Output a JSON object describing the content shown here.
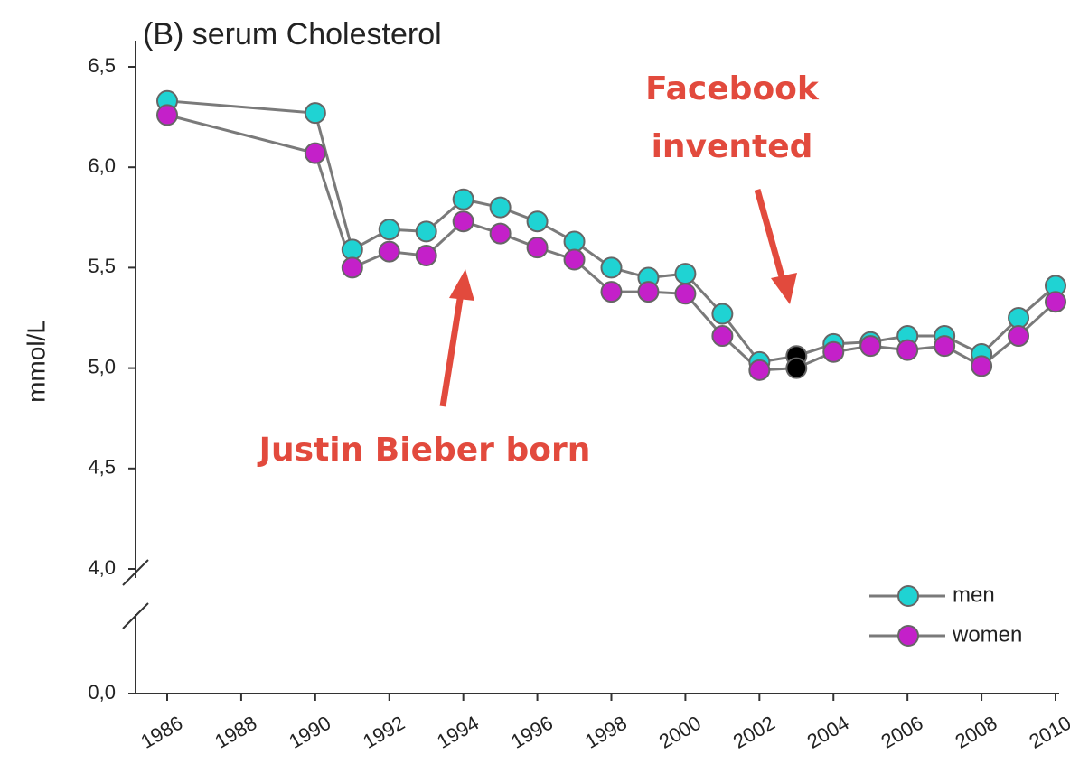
{
  "chart_data": {
    "type": "line",
    "title": "(B) serum Cholesterol",
    "y_label": "mmol/L",
    "x": [
      1986,
      1990,
      1991,
      1992,
      1993,
      1994,
      1995,
      1996,
      1997,
      1998,
      1999,
      2000,
      2001,
      2002,
      2003,
      2004,
      2005,
      2006,
      2007,
      2008,
      2009,
      2010
    ],
    "series": [
      {
        "name": "men",
        "color": "#1fd3d3",
        "values": [
          6.33,
          6.27,
          5.59,
          5.69,
          5.68,
          5.84,
          5.8,
          5.73,
          5.63,
          5.5,
          5.45,
          5.47,
          5.27,
          5.03,
          5.06,
          5.12,
          5.13,
          5.16,
          5.16,
          5.07,
          5.25,
          5.41
        ]
      },
      {
        "name": "women",
        "color": "#c420c9",
        "values": [
          6.26,
          6.07,
          5.5,
          5.58,
          5.56,
          5.73,
          5.67,
          5.6,
          5.54,
          5.38,
          5.38,
          5.37,
          5.16,
          4.99,
          5.0,
          5.08,
          5.11,
          5.09,
          5.11,
          5.01,
          5.16,
          5.33
        ]
      }
    ],
    "line_color": "#7a7a7a",
    "highlight_x": 2003,
    "highlight_color": "#000000",
    "xlim": [
      1986,
      2010
    ],
    "xticks": [
      1986,
      1988,
      1990,
      1992,
      1994,
      1996,
      1998,
      2000,
      2002,
      2004,
      2006,
      2008,
      2010
    ],
    "ylim": [
      0,
      6.5
    ],
    "y_break": [
      0,
      4
    ],
    "yticks": [
      {
        "value": 0,
        "label": "0,0"
      },
      {
        "value": 4,
        "label": "4,0"
      },
      {
        "value": 4.5,
        "label": "4,5"
      },
      {
        "value": 5,
        "label": "5,0"
      },
      {
        "value": 5.5,
        "label": "5,5"
      },
      {
        "value": 6,
        "label": "6,0"
      },
      {
        "value": 6.5,
        "label": "6,5"
      }
    ],
    "legend": "lower right",
    "annotations": [
      [
        "Justin Bieber born"
      ],
      [
        "Facebook",
        "invented"
      ]
    ],
    "annotation_color": "#e24a3d"
  }
}
